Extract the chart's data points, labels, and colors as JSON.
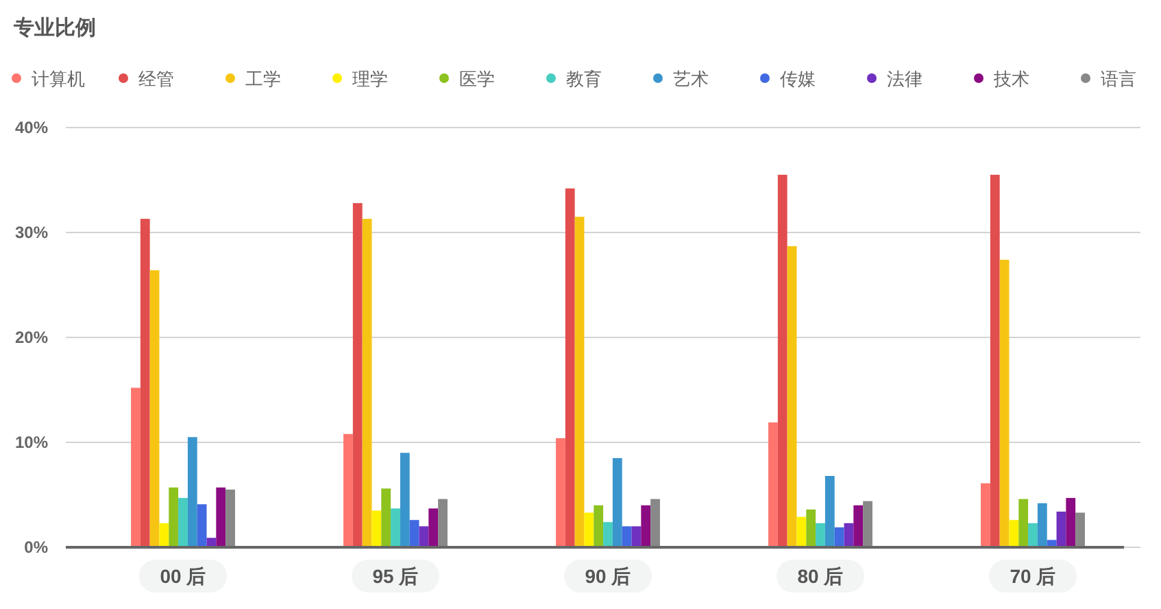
{
  "chart_data": {
    "type": "bar",
    "title": "专业比例",
    "categories": [
      "00 后",
      "95 后",
      "90 后",
      "80 后",
      "70 后"
    ],
    "series": [
      {
        "name": "计算机",
        "color": "#ff756e",
        "values": [
          15.2,
          10.8,
          10.4,
          11.9,
          6.1
        ]
      },
      {
        "name": "经管",
        "color": "#e24e4e",
        "values": [
          31.3,
          32.8,
          34.2,
          35.5,
          35.5
        ]
      },
      {
        "name": "工学",
        "color": "#f6c514",
        "values": [
          26.4,
          31.3,
          31.5,
          28.7,
          27.4
        ]
      },
      {
        "name": "理学",
        "color": "#fff000",
        "values": [
          2.3,
          3.5,
          3.3,
          2.9,
          2.6
        ]
      },
      {
        "name": "医学",
        "color": "#8dc21f",
        "values": [
          5.7,
          5.6,
          4.0,
          3.6,
          4.6
        ]
      },
      {
        "name": "教育",
        "color": "#48cdc1",
        "values": [
          4.7,
          3.7,
          2.4,
          2.3,
          2.3
        ]
      },
      {
        "name": "艺术",
        "color": "#3a95cd",
        "values": [
          10.5,
          9.0,
          8.5,
          6.8,
          4.2
        ]
      },
      {
        "name": "传媒",
        "color": "#4169e1",
        "values": [
          4.1,
          2.6,
          2.0,
          1.9,
          0.7
        ]
      },
      {
        "name": "法律",
        "color": "#7030c0",
        "values": [
          0.9,
          2.0,
          2.0,
          2.3,
          3.4
        ]
      },
      {
        "name": "技术",
        "color": "#8b0b82",
        "values": [
          5.7,
          3.7,
          4.0,
          4.0,
          4.7
        ]
      },
      {
        "name": "语言",
        "color": "#888888",
        "values": [
          5.5,
          4.6,
          4.6,
          4.4,
          3.3
        ]
      }
    ],
    "ylim": [
      0,
      40
    ],
    "yticks": [
      {
        "value": 0,
        "label": "0%"
      },
      {
        "value": 10,
        "label": "10%"
      },
      {
        "value": 20,
        "label": "20%"
      },
      {
        "value": 30,
        "label": "30%"
      },
      {
        "value": 40,
        "label": "40%"
      }
    ],
    "grid": "y",
    "legend": "top"
  }
}
